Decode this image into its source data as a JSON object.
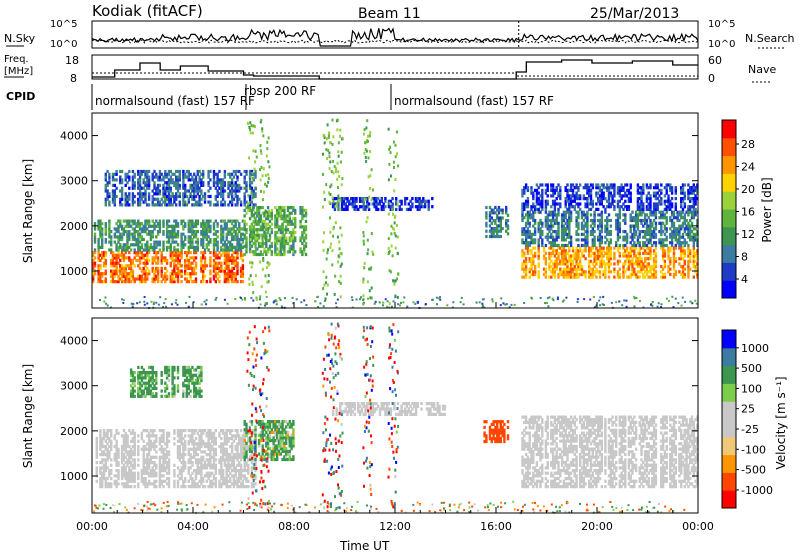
{
  "header": {
    "station": "Kodiak (fitACF)",
    "beam": "Beam 11",
    "date": "25/Mar/2013"
  },
  "nsky_panel": {
    "left_label": "N.Sky",
    "right_label": "N.Search",
    "yticks_left": [
      "10^5",
      "10^0"
    ],
    "yticks_right": [
      "10^5",
      "10^0"
    ]
  },
  "freq_panel": {
    "left_label_1": "Freq.",
    "left_label_2": "[MHz]",
    "right_label": "Nave",
    "yticks_left": [
      "18",
      "8"
    ],
    "yticks_right": [
      "60",
      "0"
    ]
  },
  "cpid": {
    "label": "CPID",
    "segments": [
      {
        "name": "normalsound (fast) 157 RF",
        "start_ut": 0.0
      },
      {
        "name": "rbsp 200 RF",
        "start_ut": 6.2
      },
      {
        "name": "normalsound (fast) 157 RF",
        "start_ut": 12.0
      }
    ]
  },
  "colors": {
    "power_scale": [
      "#0000ff",
      "#1e3cc8",
      "#3c7ca0",
      "#3c9650",
      "#5fb43c",
      "#9bd23c",
      "#ffd200",
      "#ff9600",
      "#ff5000",
      "#ff0000"
    ],
    "velocity_scale": [
      "#ff0000",
      "#ff4600",
      "#ff9600",
      "#f0c878",
      "#c8c8c8",
      "#c8c8c8",
      "#7ccd4c",
      "#3c9650",
      "#3c7ca0",
      "#0000ff"
    ]
  },
  "chart_data": [
    {
      "type": "heatmap",
      "panel": "power",
      "ylabel": "Slant Range [km]",
      "xlabel": "Time UT",
      "xlim": [
        0,
        24
      ],
      "ylim": [
        180,
        4500
      ],
      "yticks": [
        1000,
        2000,
        3000,
        4000
      ],
      "colorbar": {
        "label": "Power [dB]",
        "ticks": [
          4,
          8,
          12,
          16,
          20,
          24,
          28
        ],
        "range": [
          0,
          30
        ]
      },
      "regions": [
        {
          "t": [
            0.0,
            6.0
          ],
          "range": [
            800,
            1500
          ],
          "power": 24
        },
        {
          "t": [
            0.0,
            6.0
          ],
          "range": [
            1500,
            2200
          ],
          "power": 10
        },
        {
          "t": [
            0.5,
            6.5
          ],
          "range": [
            2500,
            3300
          ],
          "power": 6
        },
        {
          "t": [
            6.0,
            8.5
          ],
          "range": [
            1400,
            2500
          ],
          "power": 12
        },
        {
          "t": [
            9.5,
            13.5
          ],
          "range": [
            2400,
            2700
          ],
          "power": 4
        },
        {
          "t": [
            15.5,
            16.5
          ],
          "range": [
            1800,
            2500
          ],
          "power": 8
        },
        {
          "t": [
            17.0,
            24.0
          ],
          "range": [
            900,
            1600
          ],
          "power": 22
        },
        {
          "t": [
            17.0,
            24.0
          ],
          "range": [
            1600,
            2400
          ],
          "power": 8
        },
        {
          "t": [
            17.0,
            24.0
          ],
          "range": [
            2400,
            3000
          ],
          "power": 4
        }
      ]
    },
    {
      "type": "heatmap",
      "panel": "velocity",
      "ylabel": "Slant Range [km]",
      "xlabel": "Time UT",
      "xlim": [
        0,
        24
      ],
      "ylim": [
        180,
        4500
      ],
      "yticks": [
        1000,
        2000,
        3000,
        4000
      ],
      "colorbar": {
        "label": "Velocity [m s^-1]",
        "ticks": [
          1000,
          500,
          100,
          25,
          -25,
          -100,
          -500,
          -1000
        ]
      },
      "xticks": [
        "00:00",
        "04:00",
        "08:00",
        "12:00",
        "16:00",
        "20:00",
        "00:00"
      ],
      "regions": [
        {
          "t": [
            0.0,
            6.5
          ],
          "range": [
            800,
            2100
          ],
          "velocity": 0
        },
        {
          "t": [
            1.5,
            4.5
          ],
          "range": [
            2800,
            3500
          ],
          "velocity": 200
        },
        {
          "t": [
            6.0,
            8.0
          ],
          "range": [
            1400,
            2300
          ],
          "velocity": 150
        },
        {
          "t": [
            9.5,
            14.0
          ],
          "range": [
            2400,
            2700
          ],
          "velocity": 0
        },
        {
          "t": [
            15.5,
            16.5
          ],
          "range": [
            1800,
            2300
          ],
          "velocity": -300
        },
        {
          "t": [
            17.0,
            24.0
          ],
          "range": [
            800,
            2400
          ],
          "velocity": 0
        }
      ]
    }
  ],
  "xaxis": {
    "label": "Time UT",
    "ticks": [
      "00:00",
      "04:00",
      "08:00",
      "12:00",
      "16:00",
      "20:00",
      "00:00"
    ]
  },
  "colorbars": {
    "power_label": "Power [dB]",
    "power_ticks": [
      "28",
      "24",
      "20",
      "16",
      "12",
      "8",
      "4"
    ],
    "velocity_label": "Velocity [m s⁻¹]",
    "velocity_ticks": [
      "1000",
      "500",
      "100",
      "25",
      "-25",
      "-100",
      "-500",
      "-1000"
    ]
  }
}
